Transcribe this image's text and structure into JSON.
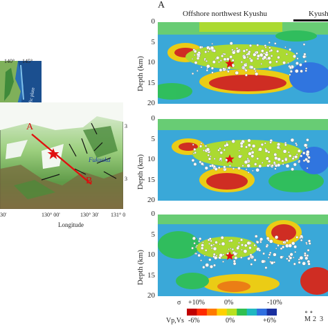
{
  "figure": {
    "panel_letter": "A",
    "header_left": "Offshore northwest Kyushu",
    "header_right": "Kyush"
  },
  "inset": {
    "lon_labels": [
      "140°",
      "145°"
    ],
    "plate_label": "Pacific plate"
  },
  "map": {
    "profile_start": "A",
    "profile_end": "B",
    "city": "Fukuoka",
    "xtick_labels": [
      "130° 00'",
      "130° 30'",
      "131° 0"
    ],
    "xtick_left_partial": "30'",
    "xlabel": "Longitude",
    "right_ticks": [
      "3",
      "3"
    ]
  },
  "sections": {
    "ylabel": "Depth (km)",
    "depth_ticks": [
      "0",
      "5",
      "10",
      "15",
      "20"
    ]
  },
  "colorbar": {
    "sigma_label": "σ",
    "sigma_ticks": [
      "+10%",
      "0%",
      "-10%"
    ],
    "vpvs_label": "Vp,Vs",
    "vpvs_ticks": [
      "-6%",
      "0%",
      "+6%"
    ],
    "colors": [
      "#c00000",
      "#ff2a00",
      "#ff7a00",
      "#ffd000",
      "#b8e020",
      "#30c050",
      "#20b8c0",
      "#3070e0",
      "#1a30a0"
    ],
    "magnitude_label": "M",
    "magnitude_values": [
      "2",
      "3"
    ]
  }
}
